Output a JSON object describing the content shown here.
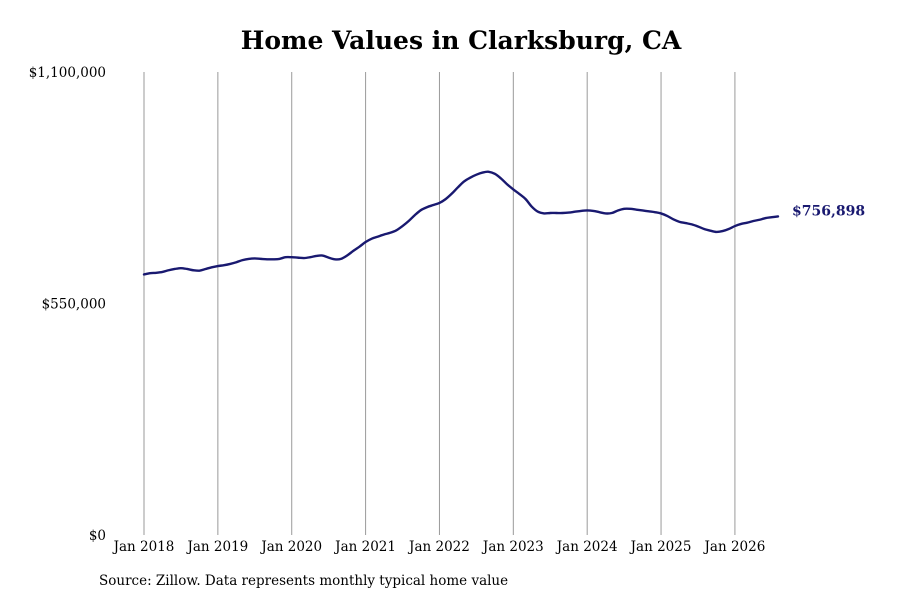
{
  "chart_data": {
    "type": "line",
    "title": "Home Values in Clarksburg, CA",
    "xlabel": "",
    "ylabel": "",
    "source": "Source: Zillow. Data represents monthly typical home value",
    "ylim": [
      0,
      1100000
    ],
    "y_ticks": [
      {
        "value": 0,
        "label": "$0"
      },
      {
        "value": 550000,
        "label": "$550,000"
      },
      {
        "value": 1100000,
        "label": "$1,100,000"
      }
    ],
    "x_ticks": [
      {
        "value": "2018-01",
        "label": "Jan 2018"
      },
      {
        "value": "2019-01",
        "label": "Jan 2019"
      },
      {
        "value": "2020-01",
        "label": "Jan 2020"
      },
      {
        "value": "2021-01",
        "label": "Jan 2021"
      },
      {
        "value": "2022-01",
        "label": "Jan 2022"
      },
      {
        "value": "2023-01",
        "label": "Jan 2023"
      },
      {
        "value": "2024-01",
        "label": "Jan 2024"
      },
      {
        "value": "2025-01",
        "label": "Jan 2025"
      },
      {
        "value": "2026-01",
        "label": "Jan 2026"
      }
    ],
    "x_range": [
      "2018-01",
      "2026-08"
    ],
    "grid": {
      "vertical": true,
      "horizontal": false
    },
    "line_color": "#191970",
    "end_label": "$756,898",
    "series": [
      {
        "name": "",
        "points": [
          [
            "2018-01",
            619000
          ],
          [
            "2018-02",
            622000
          ],
          [
            "2018-03",
            623000
          ],
          [
            "2018-04",
            625000
          ],
          [
            "2018-05",
            629000
          ],
          [
            "2018-06",
            632000
          ],
          [
            "2018-07",
            634000
          ],
          [
            "2018-08",
            632000
          ],
          [
            "2018-09",
            629000
          ],
          [
            "2018-10",
            628000
          ],
          [
            "2018-11",
            632000
          ],
          [
            "2018-12",
            636000
          ],
          [
            "2019-01",
            639000
          ],
          [
            "2019-02",
            641000
          ],
          [
            "2019-03",
            644000
          ],
          [
            "2019-04",
            648000
          ],
          [
            "2019-05",
            653000
          ],
          [
            "2019-06",
            656000
          ],
          [
            "2019-07",
            657000
          ],
          [
            "2019-08",
            656000
          ],
          [
            "2019-09",
            655000
          ],
          [
            "2019-10",
            655000
          ],
          [
            "2019-11",
            656000
          ],
          [
            "2019-12",
            660000
          ],
          [
            "2020-01",
            660000
          ],
          [
            "2020-02",
            659000
          ],
          [
            "2020-03",
            658000
          ],
          [
            "2020-04",
            660000
          ],
          [
            "2020-05",
            663000
          ],
          [
            "2020-06",
            664000
          ],
          [
            "2020-07",
            659000
          ],
          [
            "2020-08",
            655000
          ],
          [
            "2020-09",
            656000
          ],
          [
            "2020-10",
            664000
          ],
          [
            "2020-11",
            675000
          ],
          [
            "2020-12",
            685000
          ],
          [
            "2021-01",
            696000
          ],
          [
            "2021-02",
            704000
          ],
          [
            "2021-03",
            709000
          ],
          [
            "2021-04",
            714000
          ],
          [
            "2021-05",
            718000
          ],
          [
            "2021-06",
            724000
          ],
          [
            "2021-07",
            734000
          ],
          [
            "2021-08",
            746000
          ],
          [
            "2021-09",
            760000
          ],
          [
            "2021-10",
            772000
          ],
          [
            "2021-11",
            779000
          ],
          [
            "2021-12",
            784000
          ],
          [
            "2022-01",
            789000
          ],
          [
            "2022-02",
            798000
          ],
          [
            "2022-03",
            811000
          ],
          [
            "2022-04",
            826000
          ],
          [
            "2022-05",
            840000
          ],
          [
            "2022-06",
            849000
          ],
          [
            "2022-07",
            856000
          ],
          [
            "2022-08",
            861000
          ],
          [
            "2022-09",
            863000
          ],
          [
            "2022-10",
            858000
          ],
          [
            "2022-11",
            847000
          ],
          [
            "2022-12",
            833000
          ],
          [
            "2023-01",
            821000
          ],
          [
            "2023-02",
            810000
          ],
          [
            "2023-03",
            798000
          ],
          [
            "2023-04",
            780000
          ],
          [
            "2023-05",
            768000
          ],
          [
            "2023-06",
            764000
          ],
          [
            "2023-07",
            765000
          ],
          [
            "2023-08",
            765000
          ],
          [
            "2023-09",
            765000
          ],
          [
            "2023-10",
            766000
          ],
          [
            "2023-11",
            768000
          ],
          [
            "2023-12",
            770000
          ],
          [
            "2024-01",
            771000
          ],
          [
            "2024-02",
            770000
          ],
          [
            "2024-03",
            767000
          ],
          [
            "2024-04",
            764000
          ],
          [
            "2024-05",
            765000
          ],
          [
            "2024-06",
            771000
          ],
          [
            "2024-07",
            775000
          ],
          [
            "2024-08",
            775000
          ],
          [
            "2024-09",
            773000
          ],
          [
            "2024-10",
            771000
          ],
          [
            "2024-11",
            769000
          ],
          [
            "2024-12",
            767000
          ],
          [
            "2025-01",
            764000
          ],
          [
            "2025-02",
            758000
          ],
          [
            "2025-03",
            750000
          ],
          [
            "2025-04",
            744000
          ],
          [
            "2025-05",
            741000
          ],
          [
            "2025-06",
            738000
          ],
          [
            "2025-07",
            733000
          ],
          [
            "2025-08",
            727000
          ],
          [
            "2025-09",
            723000
          ],
          [
            "2025-10",
            720000
          ],
          [
            "2025-11",
            722000
          ],
          [
            "2025-12",
            727000
          ],
          [
            "2026-01",
            734000
          ],
          [
            "2026-02",
            739000
          ],
          [
            "2026-03",
            742000
          ],
          [
            "2026-04",
            746000
          ],
          [
            "2026-05",
            749000
          ],
          [
            "2026-06",
            753000
          ],
          [
            "2026-07",
            755000
          ],
          [
            "2026-08",
            756898
          ]
        ]
      }
    ]
  }
}
